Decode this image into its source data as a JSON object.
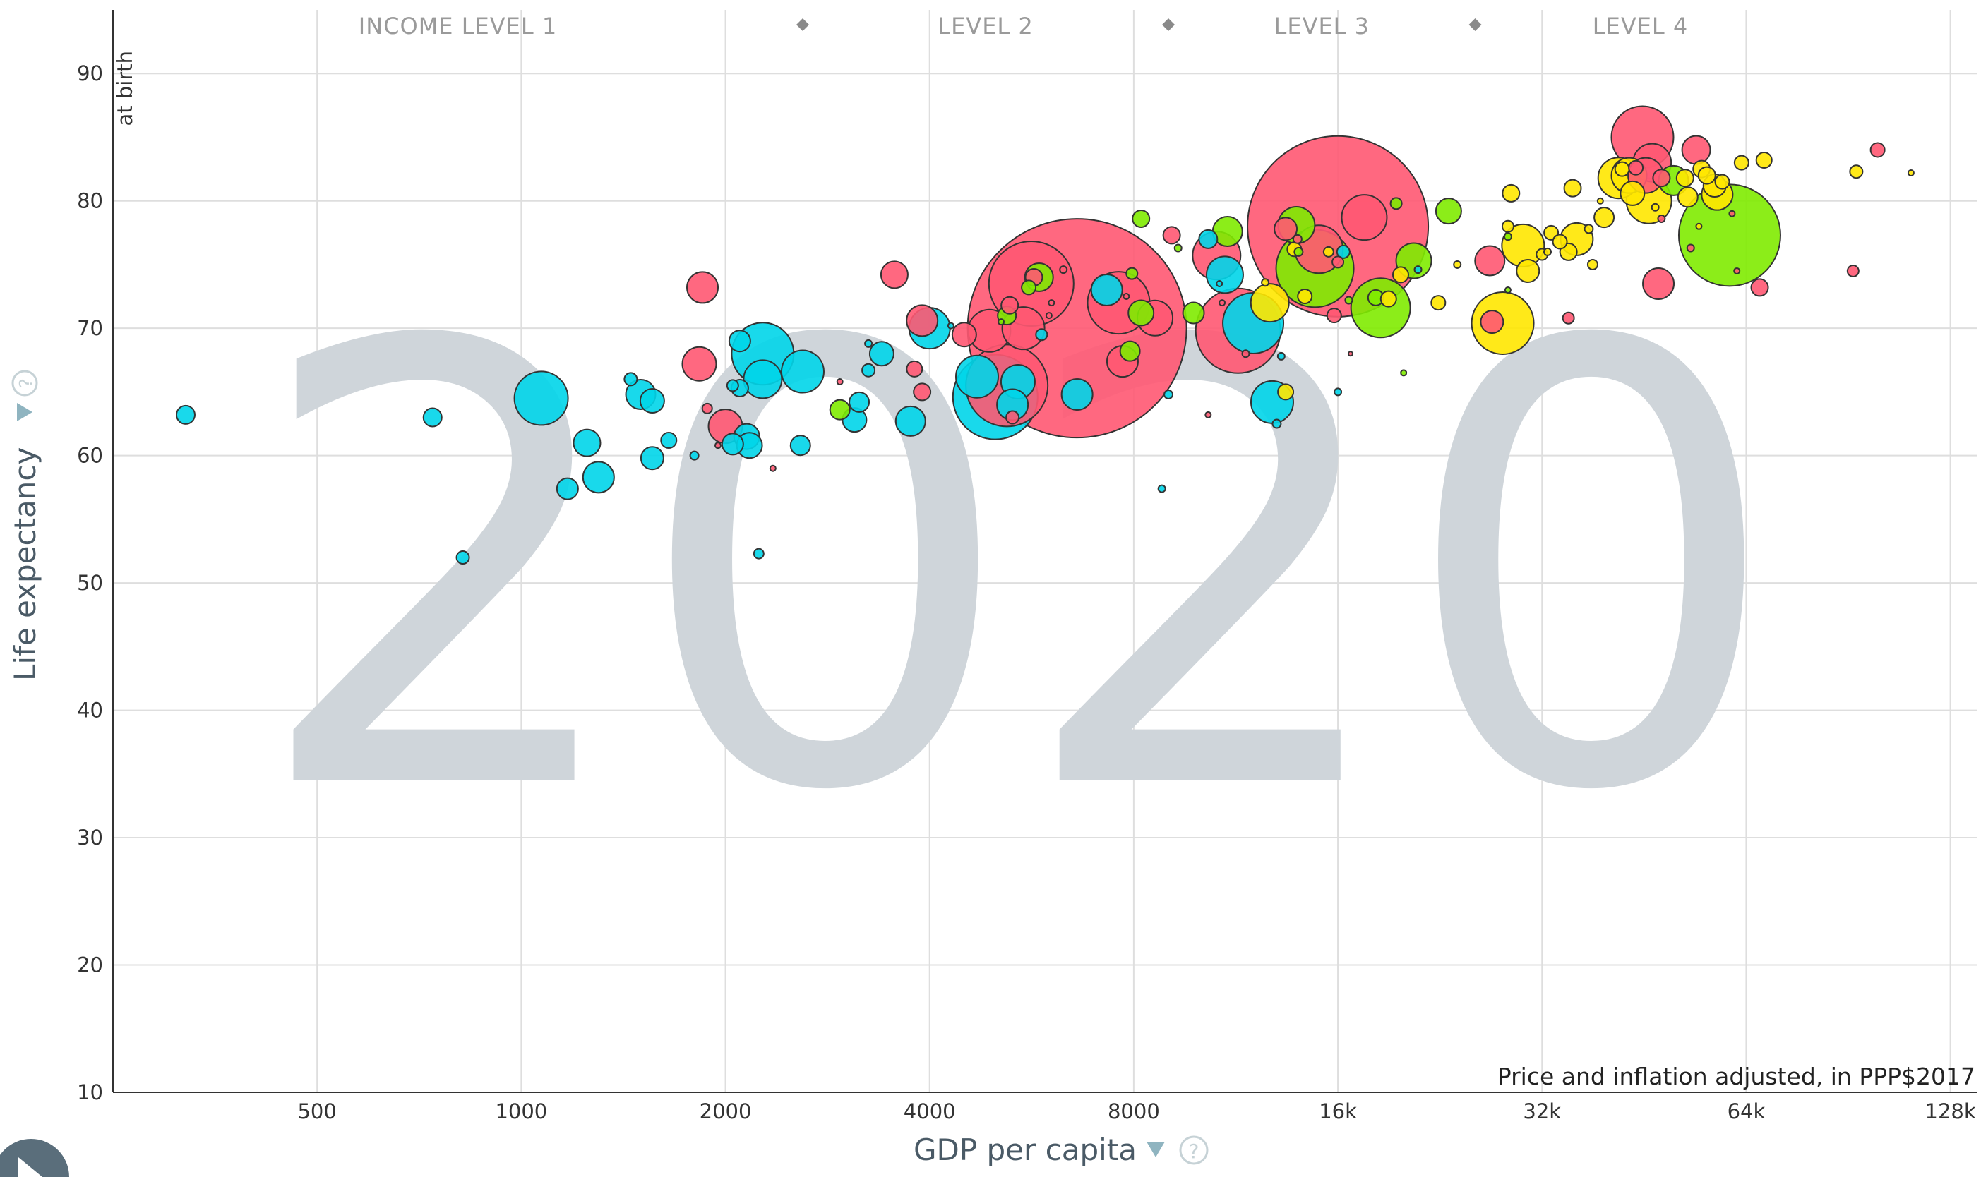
{
  "chart_data": {
    "type": "scatter",
    "title": "",
    "year": "2020",
    "xlabel": "GDP per capita",
    "ylabel": "Life expectancy",
    "ylabel_sub": "at birth",
    "x_note": "Price and inflation adjusted, in PPP$2017",
    "x_scale": "log2",
    "xlim": [
      250,
      140000
    ],
    "ylim": [
      10,
      95
    ],
    "x_ticks": [
      500,
      1000,
      2000,
      4000,
      8000,
      16000,
      32000,
      64000,
      128000
    ],
    "x_tick_labels": [
      "500",
      "1000",
      "2000",
      "4000",
      "8000",
      "16k",
      "32k",
      "64k",
      "128k"
    ],
    "y_ticks": [
      10,
      20,
      30,
      40,
      50,
      60,
      70,
      80,
      90
    ],
    "y_tick_labels": [
      "10",
      "20",
      "30",
      "40",
      "50",
      "60",
      "70",
      "80",
      "90"
    ],
    "income_levels": [
      "INCOME LEVEL 1",
      "LEVEL 2",
      "LEVEL 3",
      "LEVEL 4"
    ],
    "income_boundaries": [
      2600,
      9000,
      25500
    ],
    "grid": true,
    "colors": {
      "africa": "#00d5e9",
      "asia": "#ff5872",
      "europe": "#ffe700",
      "americas": "#7feb00",
      "year_watermark": "#cfd5da"
    },
    "points": [
      {
        "x": 320,
        "y": 63.2,
        "r": 13,
        "c": "africa"
      },
      {
        "x": 740,
        "y": 63.0,
        "r": 13,
        "c": "africa"
      },
      {
        "x": 820,
        "y": 52.0,
        "r": 9,
        "c": "africa"
      },
      {
        "x": 1070,
        "y": 64.5,
        "r": 38,
        "c": "africa"
      },
      {
        "x": 1170,
        "y": 57.4,
        "r": 15,
        "c": "africa"
      },
      {
        "x": 1250,
        "y": 61.0,
        "r": 19,
        "c": "africa"
      },
      {
        "x": 1300,
        "y": 58.3,
        "r": 22,
        "c": "africa"
      },
      {
        "x": 1450,
        "y": 66.0,
        "r": 9,
        "c": "africa"
      },
      {
        "x": 1500,
        "y": 64.8,
        "r": 21,
        "c": "africa"
      },
      {
        "x": 1560,
        "y": 64.3,
        "r": 17,
        "c": "africa"
      },
      {
        "x": 1560,
        "y": 59.8,
        "r": 16,
        "c": "africa"
      },
      {
        "x": 1650,
        "y": 61.2,
        "r": 11,
        "c": "africa"
      },
      {
        "x": 1800,
        "y": 60.0,
        "r": 6,
        "c": "africa"
      },
      {
        "x": 1850,
        "y": 73.2,
        "r": 22,
        "c": "asia"
      },
      {
        "x": 1830,
        "y": 67.2,
        "r": 24,
        "c": "asia"
      },
      {
        "x": 1880,
        "y": 63.7,
        "r": 7,
        "c": "asia"
      },
      {
        "x": 1950,
        "y": 60.8,
        "r": 4,
        "c": "asia"
      },
      {
        "x": 2000,
        "y": 62.3,
        "r": 24,
        "c": "asia"
      },
      {
        "x": 2050,
        "y": 65.5,
        "r": 8,
        "c": "africa"
      },
      {
        "x": 2100,
        "y": 65.3,
        "r": 12,
        "c": "africa"
      },
      {
        "x": 2100,
        "y": 69.0,
        "r": 15,
        "c": "africa"
      },
      {
        "x": 2050,
        "y": 60.9,
        "r": 15,
        "c": "africa"
      },
      {
        "x": 2150,
        "y": 61.5,
        "r": 18,
        "c": "africa"
      },
      {
        "x": 2170,
        "y": 60.8,
        "r": 18,
        "c": "africa"
      },
      {
        "x": 2270,
        "y": 68.0,
        "r": 44,
        "c": "africa"
      },
      {
        "x": 2270,
        "y": 66.0,
        "r": 27,
        "c": "africa"
      },
      {
        "x": 2240,
        "y": 52.3,
        "r": 7,
        "c": "africa"
      },
      {
        "x": 2350,
        "y": 59.0,
        "r": 4,
        "c": "asia"
      },
      {
        "x": 2600,
        "y": 66.6,
        "r": 30,
        "c": "africa"
      },
      {
        "x": 2580,
        "y": 60.8,
        "r": 14,
        "c": "africa"
      },
      {
        "x": 2950,
        "y": 65.8,
        "r": 4,
        "c": "asia"
      },
      {
        "x": 2950,
        "y": 63.6,
        "r": 14,
        "c": "americas"
      },
      {
        "x": 3150,
        "y": 64.2,
        "r": 14,
        "c": "africa"
      },
      {
        "x": 3100,
        "y": 62.8,
        "r": 17,
        "c": "africa"
      },
      {
        "x": 3250,
        "y": 68.8,
        "r": 5,
        "c": "africa"
      },
      {
        "x": 3250,
        "y": 66.7,
        "r": 9,
        "c": "africa"
      },
      {
        "x": 3400,
        "y": 68.0,
        "r": 17,
        "c": "africa"
      },
      {
        "x": 3550,
        "y": 74.2,
        "r": 19,
        "c": "asia"
      },
      {
        "x": 3750,
        "y": 62.7,
        "r": 21,
        "c": "africa"
      },
      {
        "x": 3800,
        "y": 66.8,
        "r": 11,
        "c": "asia"
      },
      {
        "x": 3900,
        "y": 65.0,
        "r": 12,
        "c": "asia"
      },
      {
        "x": 3900,
        "y": 70.6,
        "r": 22,
        "c": "asia"
      },
      {
        "x": 4000,
        "y": 70.0,
        "r": 29,
        "c": "africa"
      },
      {
        "x": 4300,
        "y": 70.2,
        "r": 4,
        "c": "africa"
      },
      {
        "x": 4500,
        "y": 69.5,
        "r": 17,
        "c": "asia"
      },
      {
        "x": 4700,
        "y": 66.2,
        "r": 30,
        "c": "africa"
      },
      {
        "x": 4900,
        "y": 69.8,
        "r": 30,
        "c": "asia"
      },
      {
        "x": 5100,
        "y": 70.5,
        "r": 4,
        "c": "americas"
      },
      {
        "x": 5000,
        "y": 64.6,
        "r": 60,
        "c": "africa"
      },
      {
        "x": 5200,
        "y": 65.5,
        "r": 58,
        "c": "asia"
      },
      {
        "x": 5300,
        "y": 63.0,
        "r": 9,
        "c": "asia"
      },
      {
        "x": 5250,
        "y": 71.8,
        "r": 12,
        "c": "asia"
      },
      {
        "x": 5400,
        "y": 65.8,
        "r": 24,
        "c": "africa"
      },
      {
        "x": 5300,
        "y": 64.0,
        "r": 22,
        "c": "africa"
      },
      {
        "x": 5500,
        "y": 70.0,
        "r": 30,
        "c": "asia"
      },
      {
        "x": 5650,
        "y": 73.5,
        "r": 60,
        "c": "asia"
      },
      {
        "x": 5700,
        "y": 74.0,
        "r": 12,
        "c": "asia"
      },
      {
        "x": 5800,
        "y": 74.0,
        "r": 20,
        "c": "americas"
      },
      {
        "x": 5600,
        "y": 73.2,
        "r": 10,
        "c": "americas"
      },
      {
        "x": 5850,
        "y": 69.5,
        "r": 8,
        "c": "africa"
      },
      {
        "x": 6000,
        "y": 71.0,
        "r": 4,
        "c": "asia"
      },
      {
        "x": 6050,
        "y": 72.0,
        "r": 4,
        "c": "asia"
      },
      {
        "x": 6600,
        "y": 70.0,
        "r": 155,
        "c": "asia"
      },
      {
        "x": 6600,
        "y": 64.8,
        "r": 22,
        "c": "africa"
      },
      {
        "x": 6300,
        "y": 74.6,
        "r": 5,
        "c": "asia"
      },
      {
        "x": 5200,
        "y": 71.0,
        "r": 13,
        "c": "americas"
      },
      {
        "x": 7300,
        "y": 73.0,
        "r": 22,
        "c": "africa"
      },
      {
        "x": 7600,
        "y": 72.0,
        "r": 44,
        "c": "asia"
      },
      {
        "x": 7700,
        "y": 67.4,
        "r": 22,
        "c": "asia"
      },
      {
        "x": 7900,
        "y": 68.2,
        "r": 14,
        "c": "americas"
      },
      {
        "x": 7800,
        "y": 72.5,
        "r": 4,
        "c": "asia"
      },
      {
        "x": 7950,
        "y": 74.3,
        "r": 8,
        "c": "americas"
      },
      {
        "x": 8200,
        "y": 71.2,
        "r": 18,
        "c": "americas"
      },
      {
        "x": 8600,
        "y": 70.8,
        "r": 25,
        "c": "asia"
      },
      {
        "x": 8200,
        "y": 78.6,
        "r": 12,
        "c": "americas"
      },
      {
        "x": 8800,
        "y": 57.4,
        "r": 5,
        "c": "africa"
      },
      {
        "x": 9000,
        "y": 64.8,
        "r": 6,
        "c": "africa"
      },
      {
        "x": 9100,
        "y": 77.3,
        "r": 12,
        "c": "asia"
      },
      {
        "x": 9300,
        "y": 76.3,
        "r": 5,
        "c": "americas"
      },
      {
        "x": 9800,
        "y": 71.2,
        "r": 15,
        "c": "americas"
      },
      {
        "x": 10300,
        "y": 77.0,
        "r": 13,
        "c": "africa"
      },
      {
        "x": 10300,
        "y": 63.2,
        "r": 4,
        "c": "asia"
      },
      {
        "x": 10800,
        "y": 72.0,
        "r": 4,
        "c": "asia"
      },
      {
        "x": 10600,
        "y": 75.7,
        "r": 34,
        "c": "asia"
      },
      {
        "x": 10900,
        "y": 74.2,
        "r": 26,
        "c": "africa"
      },
      {
        "x": 10700,
        "y": 73.5,
        "r": 4,
        "c": "africa"
      },
      {
        "x": 11000,
        "y": 77.6,
        "r": 21,
        "c": "americas"
      },
      {
        "x": 11400,
        "y": 69.8,
        "r": 60,
        "c": "asia"
      },
      {
        "x": 11700,
        "y": 68.0,
        "r": 5,
        "c": "asia"
      },
      {
        "x": 12000,
        "y": 70.4,
        "r": 43,
        "c": "africa"
      },
      {
        "x": 12500,
        "y": 73.6,
        "r": 5,
        "c": "europe"
      },
      {
        "x": 12700,
        "y": 72.0,
        "r": 27,
        "c": "europe"
      },
      {
        "x": 12800,
        "y": 64.2,
        "r": 30,
        "c": "africa"
      },
      {
        "x": 13000,
        "y": 62.5,
        "r": 6,
        "c": "africa"
      },
      {
        "x": 13200,
        "y": 67.8,
        "r": 5,
        "c": "africa"
      },
      {
        "x": 13400,
        "y": 77.8,
        "r": 16,
        "c": "asia"
      },
      {
        "x": 13400,
        "y": 65.0,
        "r": 11,
        "c": "europe"
      },
      {
        "x": 13800,
        "y": 76.2,
        "r": 10,
        "c": "europe"
      },
      {
        "x": 13900,
        "y": 78.1,
        "r": 26,
        "c": "americas"
      },
      {
        "x": 13950,
        "y": 77.0,
        "r": 6,
        "c": "asia"
      },
      {
        "x": 14000,
        "y": 76.0,
        "r": 6,
        "c": "americas"
      },
      {
        "x": 14300,
        "y": 72.5,
        "r": 10,
        "c": "europe"
      },
      {
        "x": 14800,
        "y": 74.7,
        "r": 55,
        "c": "americas"
      },
      {
        "x": 15000,
        "y": 76.2,
        "r": 34,
        "c": "asia"
      },
      {
        "x": 15500,
        "y": 76.0,
        "r": 7,
        "c": "europe"
      },
      {
        "x": 16000,
        "y": 75.2,
        "r": 8,
        "c": "asia"
      },
      {
        "x": 15800,
        "y": 71.0,
        "r": 10,
        "c": "asia"
      },
      {
        "x": 16000,
        "y": 78.0,
        "r": 128,
        "c": "asia"
      },
      {
        "x": 16000,
        "y": 65.0,
        "r": 5,
        "c": "africa"
      },
      {
        "x": 16300,
        "y": 76.0,
        "r": 9,
        "c": "africa"
      },
      {
        "x": 16600,
        "y": 72.2,
        "r": 5,
        "c": "americas"
      },
      {
        "x": 16700,
        "y": 68.0,
        "r": 3,
        "c": "asia"
      },
      {
        "x": 17500,
        "y": 78.7,
        "r": 32,
        "c": "asia"
      },
      {
        "x": 18200,
        "y": 72.4,
        "r": 11,
        "c": "americas"
      },
      {
        "x": 18500,
        "y": 71.6,
        "r": 42,
        "c": "americas"
      },
      {
        "x": 19000,
        "y": 72.3,
        "r": 11,
        "c": "europe"
      },
      {
        "x": 19500,
        "y": 79.8,
        "r": 8,
        "c": "americas"
      },
      {
        "x": 19800,
        "y": 74.2,
        "r": 11,
        "c": "europe"
      },
      {
        "x": 20000,
        "y": 66.5,
        "r": 4,
        "c": "americas"
      },
      {
        "x": 20700,
        "y": 75.3,
        "r": 25,
        "c": "americas"
      },
      {
        "x": 21000,
        "y": 74.6,
        "r": 5,
        "c": "africa"
      },
      {
        "x": 22500,
        "y": 72.0,
        "r": 10,
        "c": "europe"
      },
      {
        "x": 23300,
        "y": 79.2,
        "r": 18,
        "c": "americas"
      },
      {
        "x": 24000,
        "y": 75.0,
        "r": 5,
        "c": "europe"
      },
      {
        "x": 26800,
        "y": 75.3,
        "r": 21,
        "c": "asia"
      },
      {
        "x": 28000,
        "y": 70.4,
        "r": 44,
        "c": "europe"
      },
      {
        "x": 27000,
        "y": 70.5,
        "r": 16,
        "c": "asia"
      },
      {
        "x": 28500,
        "y": 78.0,
        "r": 8,
        "c": "europe"
      },
      {
        "x": 28500,
        "y": 73.0,
        "r": 4,
        "c": "americas"
      },
      {
        "x": 28800,
        "y": 80.6,
        "r": 12,
        "c": "europe"
      },
      {
        "x": 28500,
        "y": 77.2,
        "r": 5,
        "c": "americas"
      },
      {
        "x": 30000,
        "y": 76.5,
        "r": 30,
        "c": "europe"
      },
      {
        "x": 30500,
        "y": 74.5,
        "r": 16,
        "c": "europe"
      },
      {
        "x": 32000,
        "y": 75.8,
        "r": 8,
        "c": "europe"
      },
      {
        "x": 32600,
        "y": 76.0,
        "r": 5,
        "c": "europe"
      },
      {
        "x": 33000,
        "y": 77.5,
        "r": 10,
        "c": "europe"
      },
      {
        "x": 34000,
        "y": 76.8,
        "r": 10,
        "c": "europe"
      },
      {
        "x": 35000,
        "y": 70.8,
        "r": 8,
        "c": "asia"
      },
      {
        "x": 35000,
        "y": 76.0,
        "r": 12,
        "c": "europe"
      },
      {
        "x": 35500,
        "y": 81.0,
        "r": 12,
        "c": "europe"
      },
      {
        "x": 36000,
        "y": 77.0,
        "r": 23,
        "c": "europe"
      },
      {
        "x": 37500,
        "y": 77.8,
        "r": 6,
        "c": "europe"
      },
      {
        "x": 38000,
        "y": 75.0,
        "r": 7,
        "c": "europe"
      },
      {
        "x": 39000,
        "y": 80.0,
        "r": 4,
        "c": "europe"
      },
      {
        "x": 39500,
        "y": 78.7,
        "r": 14,
        "c": "europe"
      },
      {
        "x": 41500,
        "y": 81.8,
        "r": 29,
        "c": "europe"
      },
      {
        "x": 42000,
        "y": 82.5,
        "r": 10,
        "c": "europe"
      },
      {
        "x": 43000,
        "y": 82.0,
        "r": 25,
        "c": "europe"
      },
      {
        "x": 43500,
        "y": 80.6,
        "r": 17,
        "c": "europe"
      },
      {
        "x": 44000,
        "y": 82.6,
        "r": 10,
        "c": "asia"
      },
      {
        "x": 45000,
        "y": 85.0,
        "r": 44,
        "c": "asia"
      },
      {
        "x": 45500,
        "y": 82.0,
        "r": 25,
        "c": "asia"
      },
      {
        "x": 46000,
        "y": 80.0,
        "r": 32,
        "c": "europe"
      },
      {
        "x": 46500,
        "y": 83.0,
        "r": 27,
        "c": "asia"
      },
      {
        "x": 47000,
        "y": 79.5,
        "r": 5,
        "c": "europe"
      },
      {
        "x": 47500,
        "y": 73.5,
        "r": 22,
        "c": "asia"
      },
      {
        "x": 48000,
        "y": 81.8,
        "r": 12,
        "c": "asia"
      },
      {
        "x": 48000,
        "y": 78.6,
        "r": 5,
        "c": "asia"
      },
      {
        "x": 50000,
        "y": 81.6,
        "r": 21,
        "c": "americas"
      },
      {
        "x": 52000,
        "y": 81.8,
        "r": 12,
        "c": "europe"
      },
      {
        "x": 52500,
        "y": 80.3,
        "r": 14,
        "c": "europe"
      },
      {
        "x": 53000,
        "y": 76.3,
        "r": 5,
        "c": "asia"
      },
      {
        "x": 54000,
        "y": 84.0,
        "r": 20,
        "c": "asia"
      },
      {
        "x": 54500,
        "y": 78.0,
        "r": 4,
        "c": "europe"
      },
      {
        "x": 55000,
        "y": 82.5,
        "r": 12,
        "c": "europe"
      },
      {
        "x": 56000,
        "y": 82.0,
        "r": 12,
        "c": "europe"
      },
      {
        "x": 57500,
        "y": 81.2,
        "r": 16,
        "c": "europe"
      },
      {
        "x": 58000,
        "y": 80.5,
        "r": 22,
        "c": "europe"
      },
      {
        "x": 59000,
        "y": 81.5,
        "r": 10,
        "c": "europe"
      },
      {
        "x": 60500,
        "y": 77.3,
        "r": 72,
        "c": "americas"
      },
      {
        "x": 61000,
        "y": 79.0,
        "r": 4,
        "c": "asia"
      },
      {
        "x": 62000,
        "y": 74.5,
        "r": 4,
        "c": "asia"
      },
      {
        "x": 63000,
        "y": 83.0,
        "r": 10,
        "c": "europe"
      },
      {
        "x": 67000,
        "y": 73.2,
        "r": 12,
        "c": "asia"
      },
      {
        "x": 68000,
        "y": 83.2,
        "r": 11,
        "c": "europe"
      },
      {
        "x": 92000,
        "y": 74.5,
        "r": 8,
        "c": "asia"
      },
      {
        "x": 93000,
        "y": 82.3,
        "r": 9,
        "c": "europe"
      },
      {
        "x": 100000,
        "y": 84.0,
        "r": 10,
        "c": "asia"
      },
      {
        "x": 112000,
        "y": 82.2,
        "r": 4,
        "c": "europe"
      }
    ]
  }
}
